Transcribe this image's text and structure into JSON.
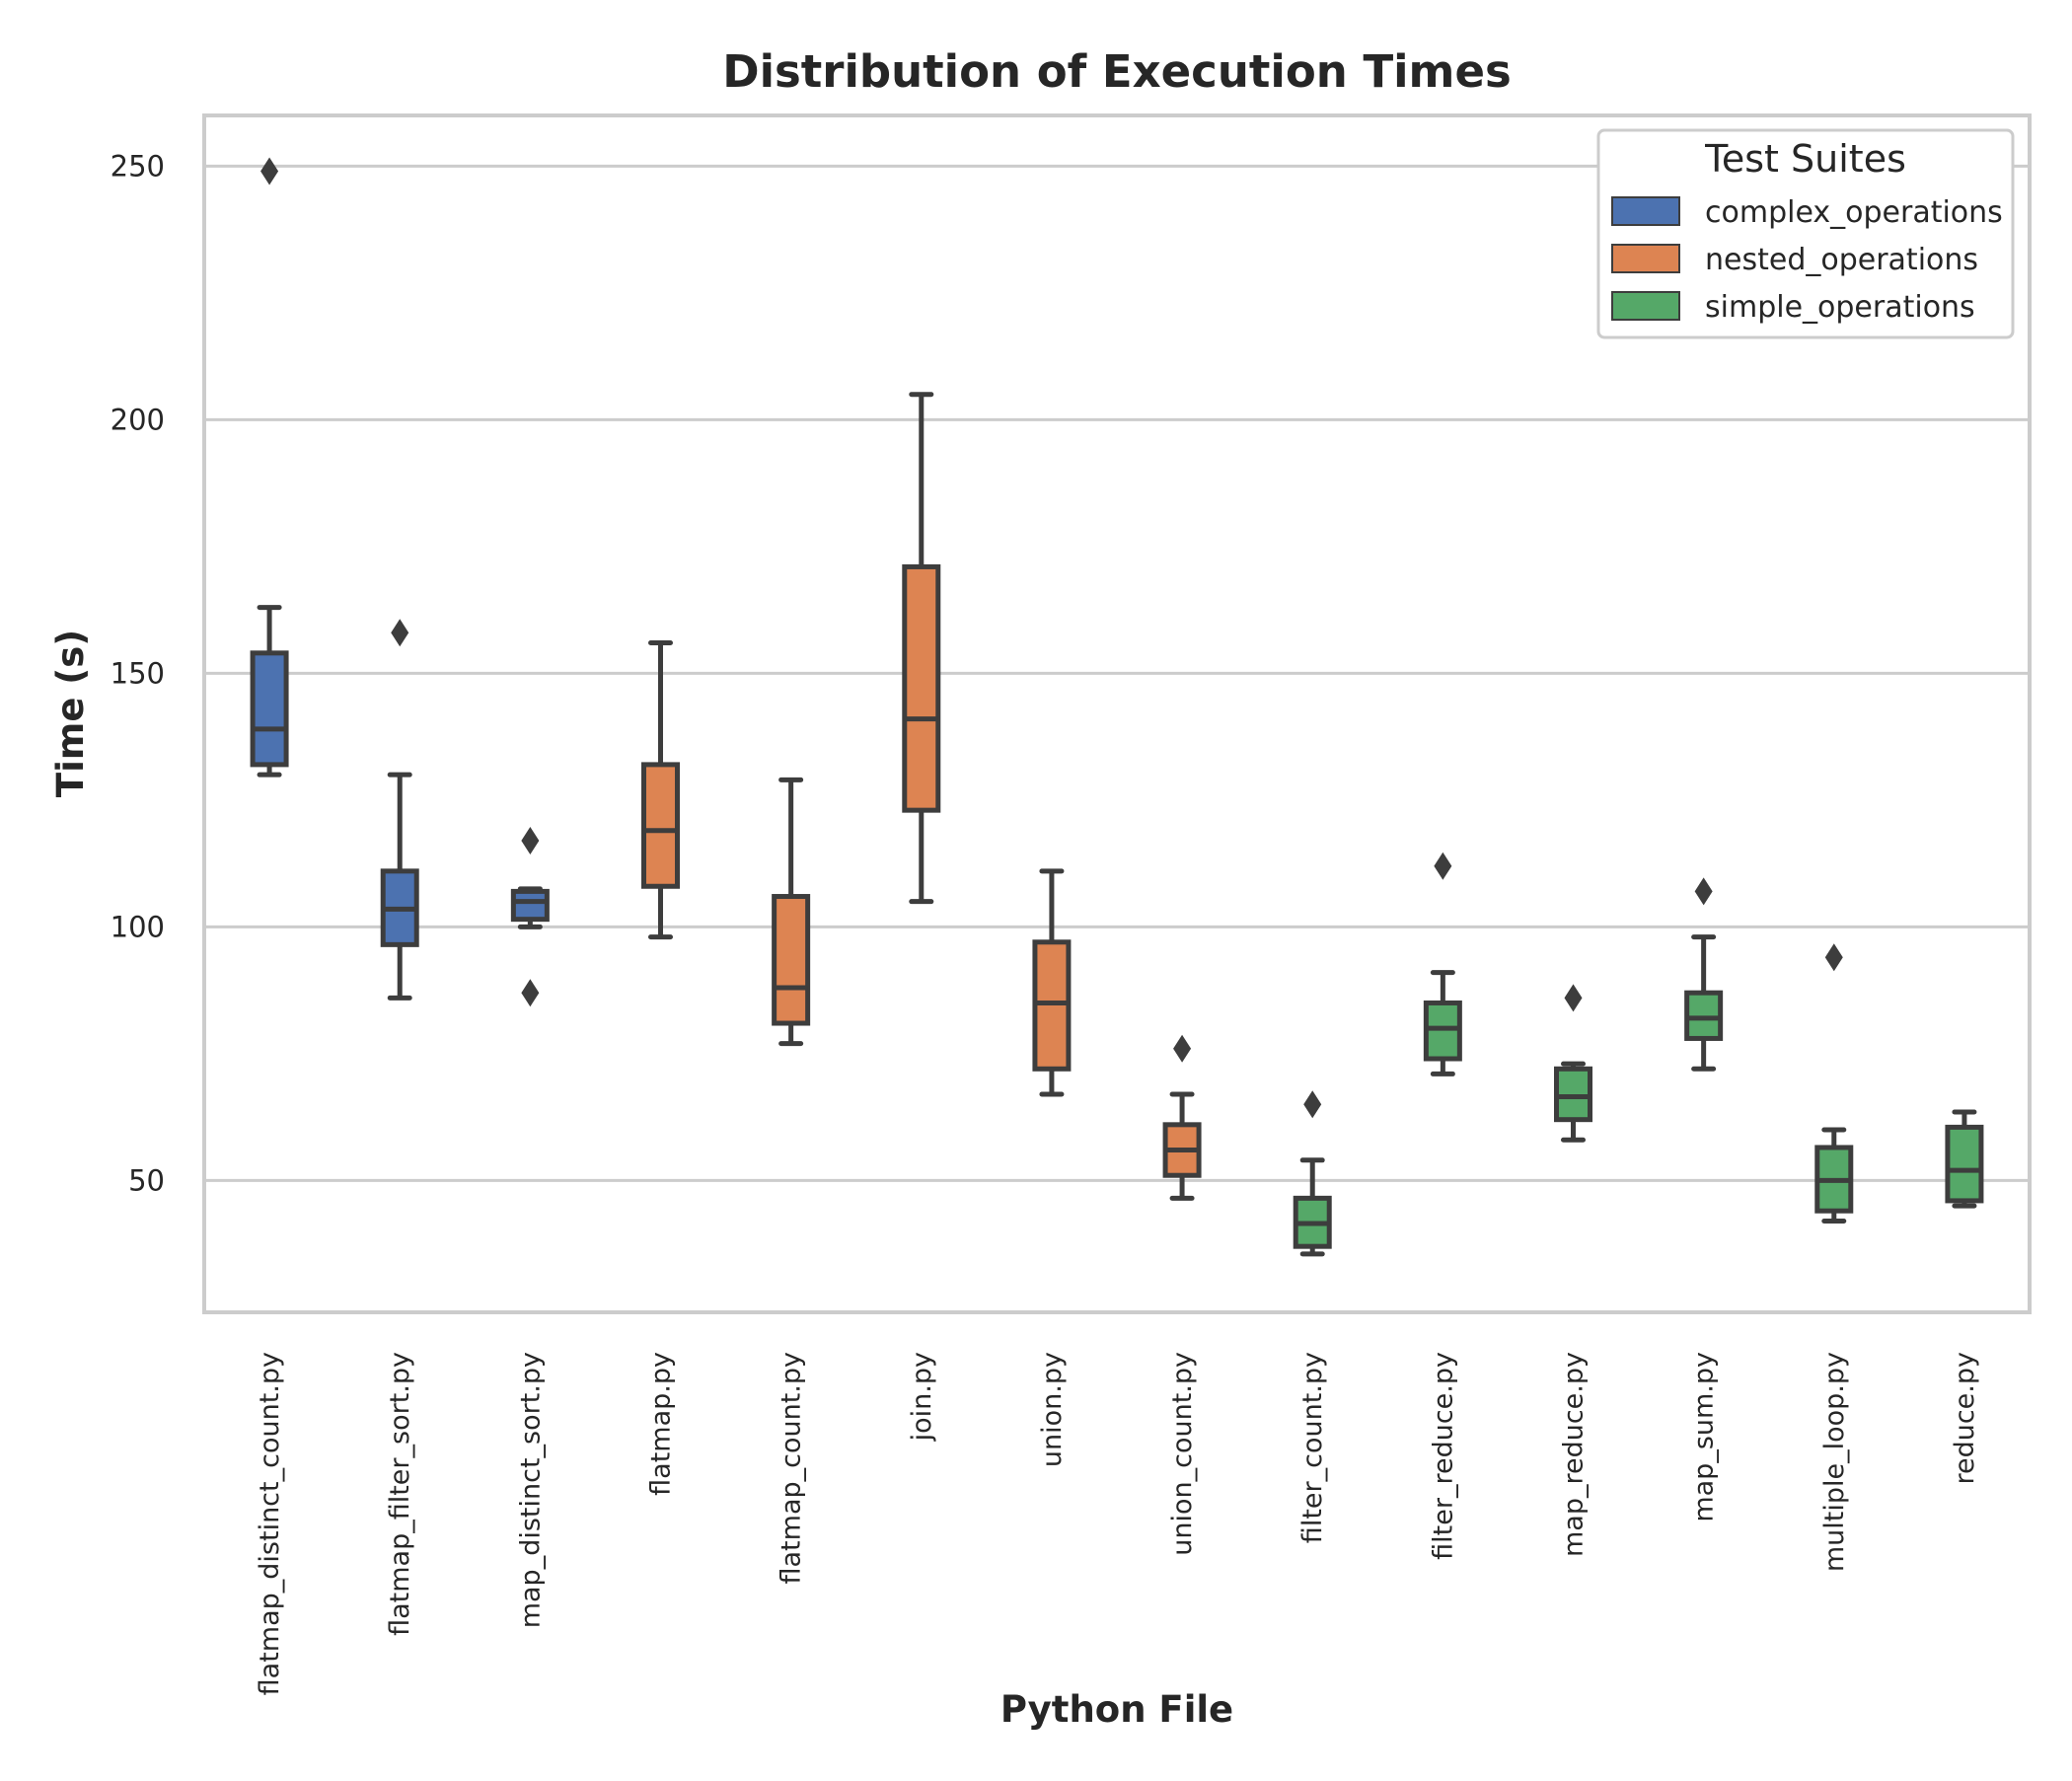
{
  "chart_data": {
    "type": "box",
    "title": "Distribution of Execution Times",
    "xlabel": "Python File",
    "ylabel": "Time (s)",
    "ylim": [
      24,
      260
    ],
    "yticks": [
      50,
      100,
      150,
      200,
      250
    ],
    "grid": true,
    "legend": {
      "title": "Test Suites",
      "placement": "top-right",
      "entries": [
        {
          "name": "complex_operations",
          "color": "#4c72b0"
        },
        {
          "name": "nested_operations",
          "color": "#dd8452"
        },
        {
          "name": "simple_operations",
          "color": "#55a868"
        }
      ]
    },
    "categories": [
      {
        "label": "flatmap_distinct_count.py",
        "suite": "complex_operations",
        "whisker_low": 130,
        "q1": 132,
        "median": 139,
        "q3": 154,
        "whisker_high": 163,
        "outliers": [
          249
        ]
      },
      {
        "label": "flatmap_filter_sort.py",
        "suite": "complex_operations",
        "whisker_low": 86,
        "q1": 96.5,
        "median": 103.5,
        "q3": 111,
        "whisker_high": 130,
        "outliers": [
          158
        ]
      },
      {
        "label": "map_distinct_sort.py",
        "suite": "complex_operations",
        "whisker_low": 100,
        "q1": 101.5,
        "median": 105,
        "q3": 107,
        "whisker_high": 107.5,
        "outliers": [
          117,
          87
        ]
      },
      {
        "label": "flatmap.py",
        "suite": "nested_operations",
        "whisker_low": 98,
        "q1": 108,
        "median": 119,
        "q3": 132,
        "whisker_high": 156,
        "outliers": []
      },
      {
        "label": "flatmap_count.py",
        "suite": "nested_operations",
        "whisker_low": 77,
        "q1": 81,
        "median": 88,
        "q3": 106,
        "whisker_high": 129,
        "outliers": []
      },
      {
        "label": "join.py",
        "suite": "nested_operations",
        "whisker_low": 105,
        "q1": 123,
        "median": 141,
        "q3": 171,
        "whisker_high": 205,
        "outliers": []
      },
      {
        "label": "union.py",
        "suite": "nested_operations",
        "whisker_low": 67,
        "q1": 72,
        "median": 85,
        "q3": 97,
        "whisker_high": 111,
        "outliers": []
      },
      {
        "label": "union_count.py",
        "suite": "nested_operations",
        "whisker_low": 46.5,
        "q1": 51,
        "median": 56,
        "q3": 61,
        "whisker_high": 67,
        "outliers": [
          76
        ]
      },
      {
        "label": "filter_count.py",
        "suite": "simple_operations",
        "whisker_low": 35.5,
        "q1": 37,
        "median": 41.5,
        "q3": 46.5,
        "whisker_high": 54,
        "outliers": [
          65
        ]
      },
      {
        "label": "filter_reduce.py",
        "suite": "simple_operations",
        "whisker_low": 71,
        "q1": 74,
        "median": 80,
        "q3": 85,
        "whisker_high": 91,
        "outliers": [
          112
        ]
      },
      {
        "label": "map_reduce.py",
        "suite": "simple_operations",
        "whisker_low": 58,
        "q1": 62,
        "median": 66.5,
        "q3": 72,
        "whisker_high": 73,
        "outliers": [
          86
        ]
      },
      {
        "label": "map_sum.py",
        "suite": "simple_operations",
        "whisker_low": 72,
        "q1": 78,
        "median": 82,
        "q3": 87,
        "whisker_high": 98,
        "outliers": [
          107
        ]
      },
      {
        "label": "multiple_loop.py",
        "suite": "simple_operations",
        "whisker_low": 42,
        "q1": 44,
        "median": 50,
        "q3": 56.5,
        "whisker_high": 60,
        "outliers": [
          94
        ]
      },
      {
        "label": "reduce.py",
        "suite": "simple_operations",
        "whisker_low": 45,
        "q1": 46,
        "median": 52,
        "q3": 60.5,
        "whisker_high": 63.5,
        "outliers": []
      }
    ]
  }
}
